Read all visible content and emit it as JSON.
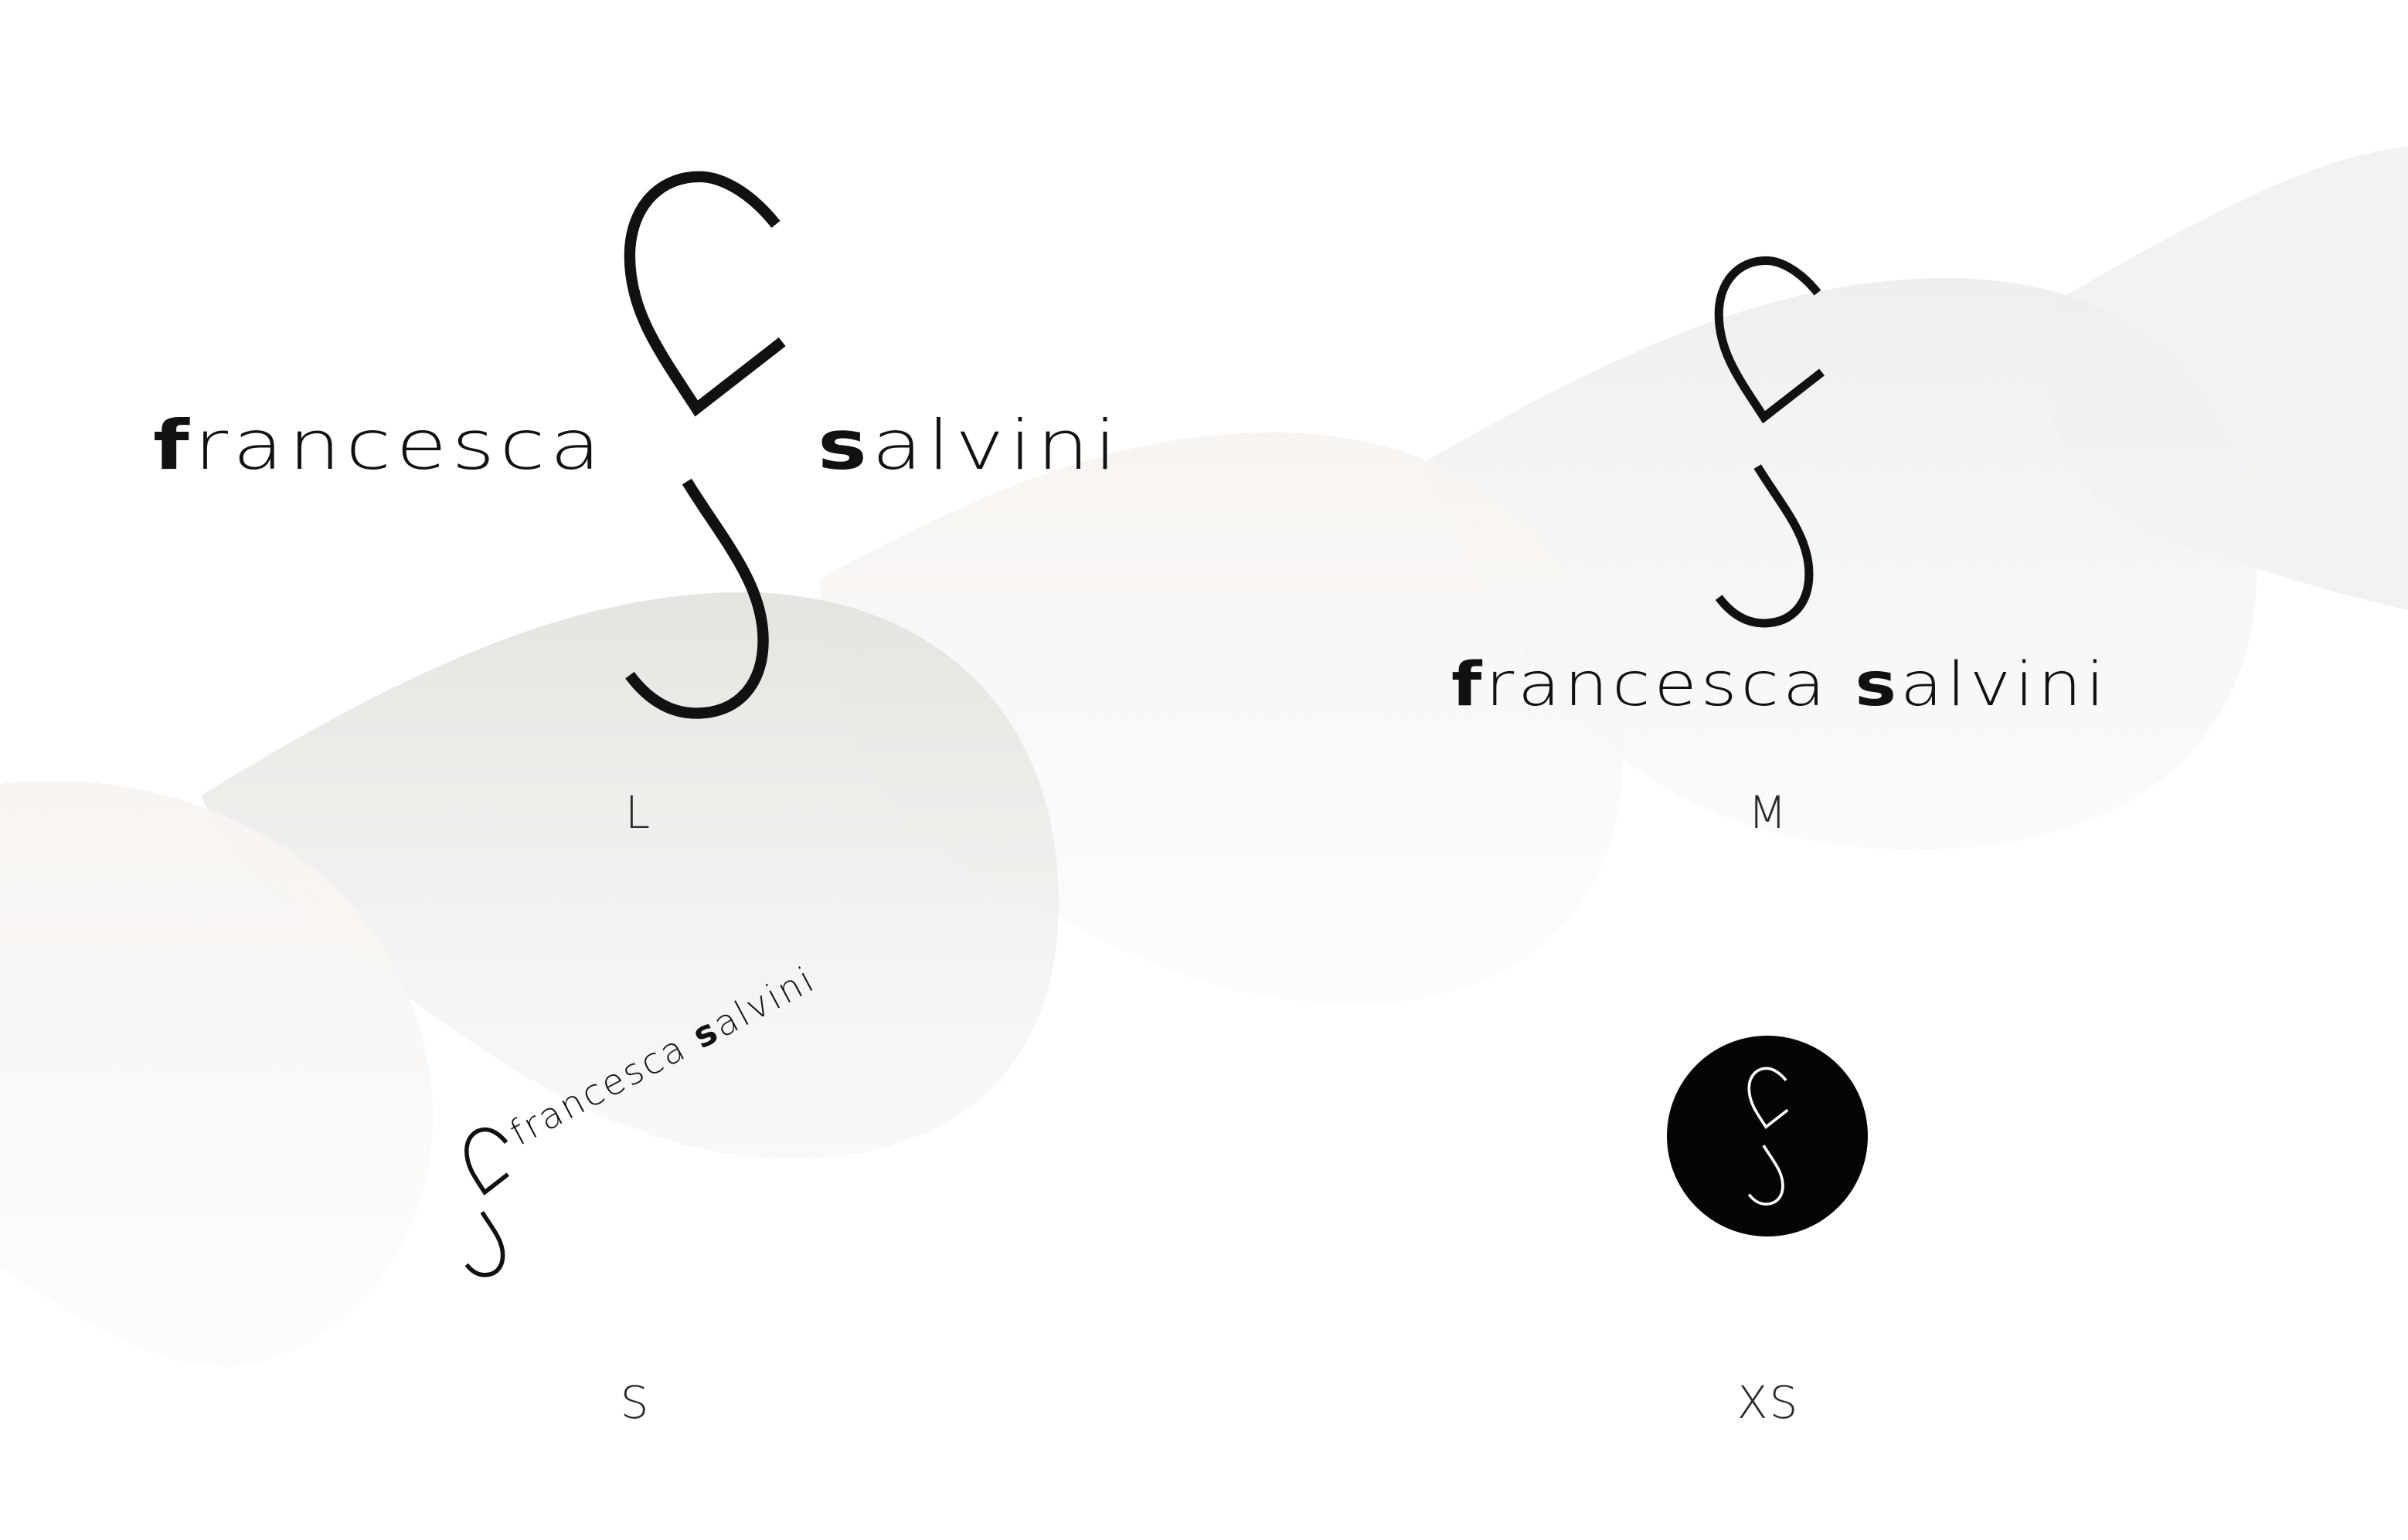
{
  "brand": {
    "first_initial": "f",
    "first_rest": "rancesca",
    "last_initial": "s",
    "last_rest": "alvini"
  },
  "size_labels": {
    "large": "L",
    "medium": "M",
    "small": "S",
    "extra_small": "XS"
  },
  "colors": {
    "ink": "#111111",
    "background": "#ffffff",
    "badge": "#050505"
  },
  "icons": {
    "monogram": "fs-monogram-icon",
    "badge": "circle-badge-icon"
  }
}
